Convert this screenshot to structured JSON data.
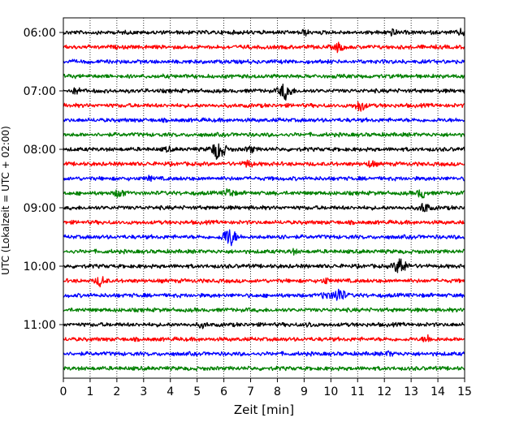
{
  "chart_data": {
    "type": "line",
    "title": "",
    "xlabel": "Zeit  [min]",
    "ylabel": "UTC (Lokalzeit = UTC + 02:00)",
    "xlim": [
      0,
      15
    ],
    "x_ticks": [
      0,
      1,
      2,
      3,
      4,
      5,
      6,
      7,
      8,
      9,
      10,
      11,
      12,
      13,
      14,
      15
    ],
    "x_grid": true,
    "y_ticks": [
      "06:00",
      "07:00",
      "08:00",
      "09:00",
      "10:00",
      "11:00"
    ],
    "trace_interval_min": 15,
    "trace_color_cycle": [
      "#000000",
      "#ff0000",
      "#0000ff",
      "#008000"
    ],
    "traces": [
      {
        "start": "06:00",
        "events": [
          {
            "t": 9.0,
            "amp": 0.25
          },
          {
            "t": 12.3,
            "amp": 0.3
          },
          {
            "t": 14.9,
            "amp": 0.3
          }
        ]
      },
      {
        "start": "06:15",
        "events": [
          {
            "t": 10.3,
            "amp": 0.45
          }
        ]
      },
      {
        "start": "06:30",
        "events": []
      },
      {
        "start": "06:45",
        "events": []
      },
      {
        "start": "07:00",
        "events": [
          {
            "t": 0.5,
            "amp": 0.3
          },
          {
            "t": 8.3,
            "amp": 0.85
          }
        ]
      },
      {
        "start": "07:15",
        "events": [
          {
            "t": 11.1,
            "amp": 0.55
          }
        ]
      },
      {
        "start": "07:30",
        "events": []
      },
      {
        "start": "07:45",
        "events": []
      },
      {
        "start": "08:00",
        "events": [
          {
            "t": 3.9,
            "amp": 0.2
          },
          {
            "t": 5.8,
            "amp": 1.0
          },
          {
            "t": 7.0,
            "amp": 0.3
          }
        ]
      },
      {
        "start": "08:15",
        "events": [
          {
            "t": 6.9,
            "amp": 0.35
          },
          {
            "t": 11.5,
            "amp": 0.3
          }
        ]
      },
      {
        "start": "08:30",
        "events": [
          {
            "t": 3.2,
            "amp": 0.2
          }
        ]
      },
      {
        "start": "08:45",
        "events": [
          {
            "t": 2.1,
            "amp": 0.45
          },
          {
            "t": 6.2,
            "amp": 0.45
          },
          {
            "t": 13.4,
            "amp": 0.45
          }
        ]
      },
      {
        "start": "09:00",
        "events": [
          {
            "t": 13.5,
            "amp": 0.5
          }
        ]
      },
      {
        "start": "09:15",
        "events": []
      },
      {
        "start": "09:30",
        "events": [
          {
            "t": 6.2,
            "amp": 0.95
          },
          {
            "t": 8.1,
            "amp": 0.25
          }
        ]
      },
      {
        "start": "09:45",
        "events": [
          {
            "t": 8.6,
            "amp": 0.2
          }
        ]
      },
      {
        "start": "10:00",
        "events": [
          {
            "t": 12.6,
            "amp": 0.85
          }
        ]
      },
      {
        "start": "10:15",
        "events": [
          {
            "t": 1.4,
            "amp": 0.5
          },
          {
            "t": 9.8,
            "amp": 0.25
          }
        ]
      },
      {
        "start": "10:30",
        "events": [
          {
            "t": 9.8,
            "amp": 0.35
          },
          {
            "t": 10.3,
            "amp": 0.75
          }
        ]
      },
      {
        "start": "10:45",
        "events": []
      },
      {
        "start": "11:00",
        "events": [
          {
            "t": 5.2,
            "amp": 0.25
          },
          {
            "t": 9.2,
            "amp": 0.2
          }
        ]
      },
      {
        "start": "11:15",
        "events": [
          {
            "t": 13.6,
            "amp": 0.35
          }
        ]
      },
      {
        "start": "11:30",
        "events": [
          {
            "t": 12.2,
            "amp": 0.2
          }
        ]
      },
      {
        "start": "11:45",
        "events": []
      }
    ]
  }
}
